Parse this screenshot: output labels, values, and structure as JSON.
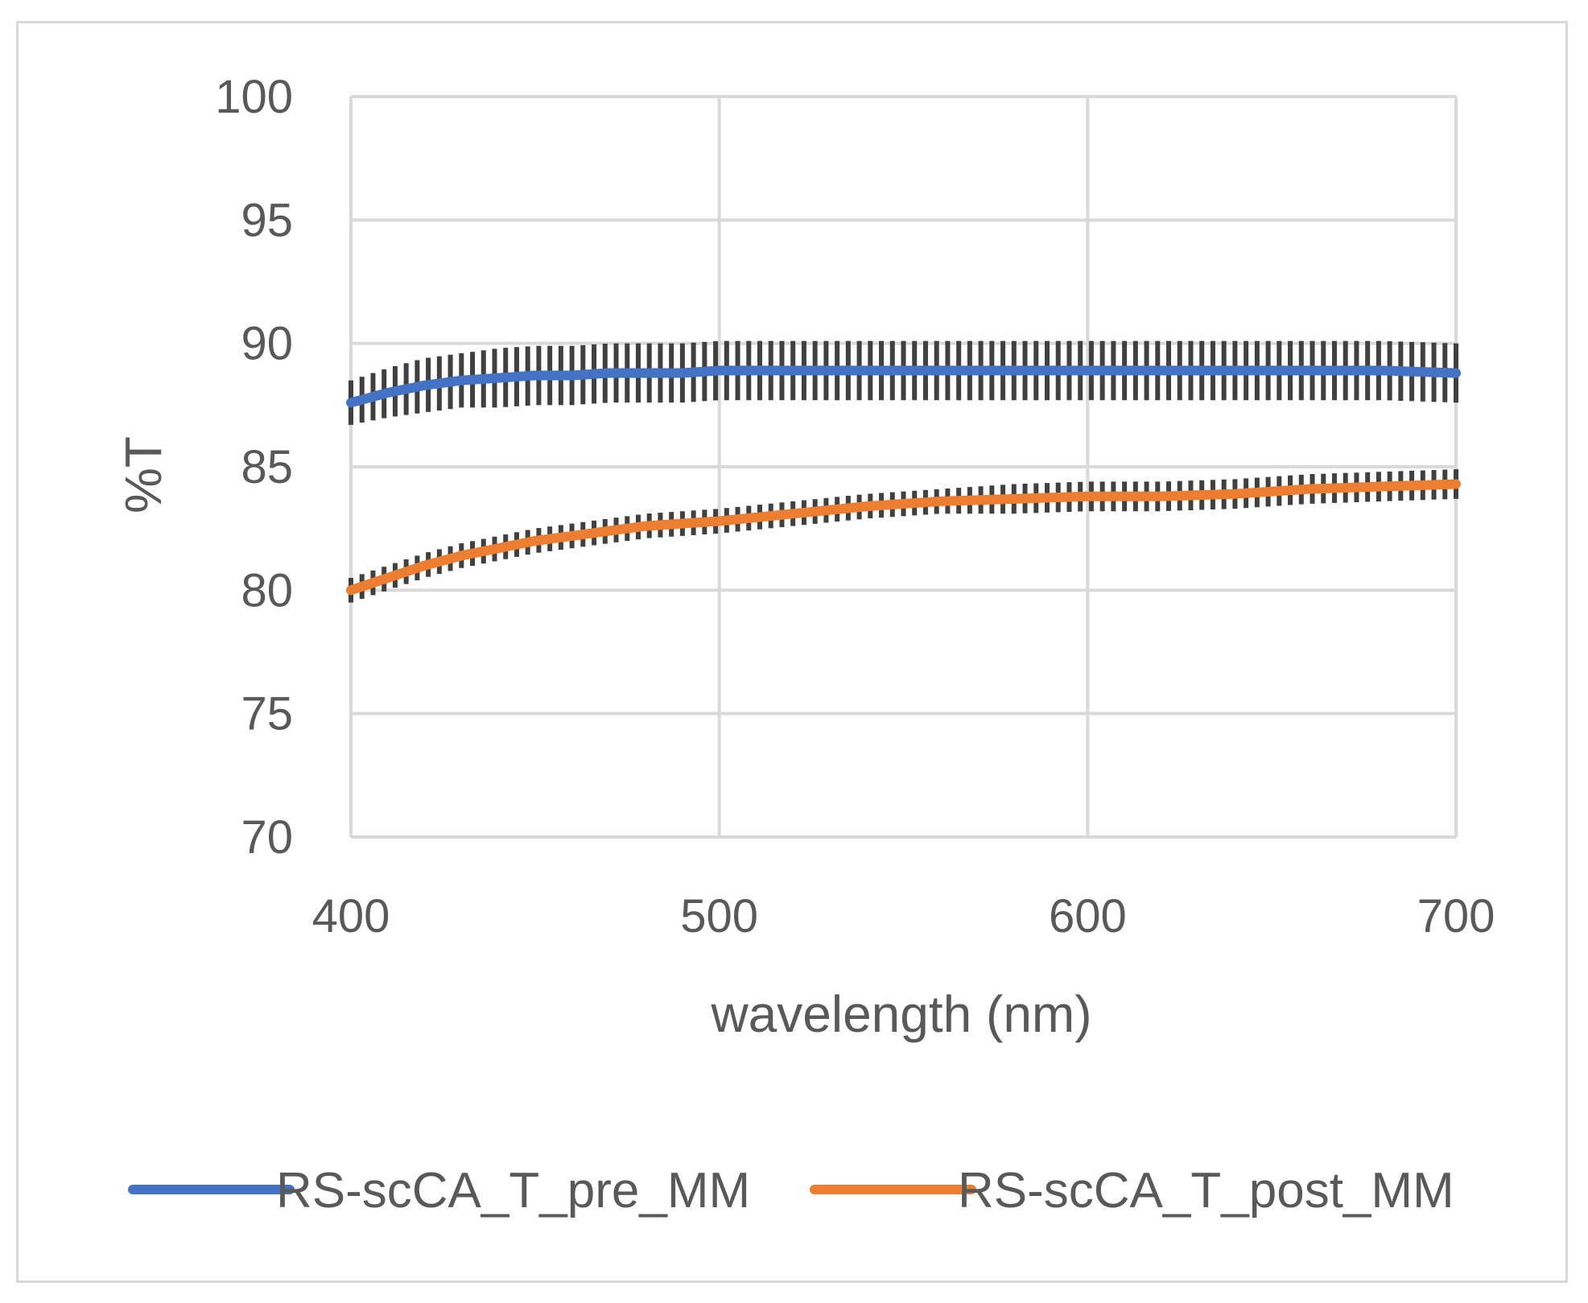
{
  "chart_data": {
    "type": "line",
    "title": "",
    "xlabel": "wavelength (nm)",
    "ylabel": "%T",
    "xlim": [
      400,
      700
    ],
    "ylim": [
      70,
      100
    ],
    "xticks": [
      400,
      500,
      600,
      700
    ],
    "yticks": [
      70,
      75,
      80,
      85,
      90,
      95,
      100
    ],
    "grid": true,
    "legend_position": "bottom",
    "series": [
      {
        "name": "RS-scCA_T_pre_MM",
        "color": "#4472c4",
        "x": [
          400,
          410,
          420,
          430,
          440,
          450,
          460,
          470,
          480,
          490,
          500,
          520,
          540,
          560,
          580,
          600,
          620,
          640,
          660,
          680,
          700
        ],
        "y": [
          87.6,
          88.0,
          88.3,
          88.5,
          88.6,
          88.7,
          88.7,
          88.8,
          88.8,
          88.8,
          88.9,
          88.9,
          88.9,
          88.9,
          88.9,
          88.9,
          88.9,
          88.9,
          88.9,
          88.9,
          88.8
        ],
        "error": [
          0.9,
          1.0,
          1.1,
          1.1,
          1.2,
          1.2,
          1.2,
          1.2,
          1.2,
          1.2,
          1.2,
          1.2,
          1.2,
          1.2,
          1.2,
          1.2,
          1.2,
          1.2,
          1.2,
          1.2,
          1.2
        ]
      },
      {
        "name": "RS-scCA_T_post_MM",
        "color": "#ed7d31",
        "x": [
          400,
          410,
          420,
          430,
          440,
          450,
          460,
          470,
          480,
          490,
          500,
          520,
          540,
          560,
          580,
          600,
          620,
          640,
          660,
          680,
          700
        ],
        "y": [
          80.0,
          80.5,
          81.0,
          81.4,
          81.7,
          82.0,
          82.2,
          82.4,
          82.6,
          82.7,
          82.8,
          83.1,
          83.4,
          83.6,
          83.7,
          83.8,
          83.8,
          83.9,
          84.1,
          84.2,
          84.3
        ],
        "error": [
          0.5,
          0.5,
          0.5,
          0.5,
          0.5,
          0.5,
          0.5,
          0.5,
          0.5,
          0.5,
          0.5,
          0.5,
          0.5,
          0.5,
          0.6,
          0.6,
          0.6,
          0.6,
          0.6,
          0.6,
          0.6
        ]
      }
    ]
  }
}
